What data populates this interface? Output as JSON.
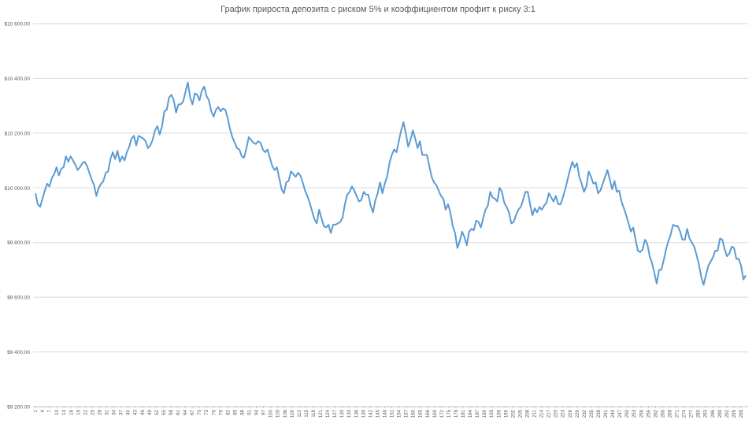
{
  "chart_data": {
    "type": "line",
    "title": "График прироста депозита с риском 5% и коэффициентом профит к риску 3:1",
    "xlabel": "",
    "ylabel": "",
    "x_range": [
      1,
      300
    ],
    "x_tick_step": 3,
    "ylim": [
      9200,
      10600
    ],
    "y_ticks": [
      9200,
      9400,
      9600,
      9800,
      10000,
      10200,
      10400,
      10600
    ],
    "y_tick_labels": [
      "$9 200.00",
      "$9 400.00",
      "$9 600.00",
      "$9 800.00",
      "$10 000.00",
      "$10 200.00",
      "$10 400.00",
      "$10 600.00"
    ],
    "grid": true,
    "legend": "none",
    "line_color": "#5b9bd5",
    "grid_color": "#d9d9d9",
    "series": [
      {
        "values": [
          9980,
          9940,
          9930,
          9960,
          9990,
          10015,
          10005,
          10035,
          10050,
          10075,
          10045,
          10070,
          10075,
          10115,
          10095,
          10115,
          10100,
          10085,
          10065,
          10075,
          10090,
          10095,
          10080,
          10055,
          10030,
          10010,
          9970,
          10000,
          10015,
          10025,
          10055,
          10060,
          10105,
          10130,
          10105,
          10135,
          10095,
          10115,
          10100,
          10130,
          10150,
          10180,
          10190,
          10155,
          10190,
          10185,
          10180,
          10170,
          10145,
          10155,
          10175,
          10210,
          10225,
          10195,
          10225,
          10280,
          10285,
          10330,
          10340,
          10320,
          10275,
          10305,
          10305,
          10315,
          10350,
          10385,
          10330,
          10305,
          10345,
          10340,
          10320,
          10355,
          10370,
          10335,
          10320,
          10280,
          10260,
          10285,
          10295,
          10280,
          10290,
          10285,
          10255,
          10215,
          10185,
          10165,
          10145,
          10140,
          10115,
          10110,
          10145,
          10185,
          10175,
          10165,
          10160,
          10170,
          10165,
          10140,
          10130,
          10140,
          10110,
          10080,
          10065,
          10075,
          10035,
          9995,
          9980,
          10020,
          10025,
          10060,
          10050,
          10040,
          10055,
          10045,
          10020,
          9990,
          9970,
          9945,
          9915,
          9885,
          9870,
          9920,
          9890,
          9860,
          9855,
          9865,
          9835,
          9865,
          9865,
          9870,
          9875,
          9890,
          9940,
          9975,
          9985,
          10005,
          9990,
          9970,
          9950,
          9955,
          9985,
          9975,
          9975,
          9935,
          9910,
          9955,
          9980,
          10020,
          9980,
          10015,
          10040,
          10090,
          10120,
          10140,
          10130,
          10170,
          10210,
          10240,
          10200,
          10150,
          10175,
          10210,
          10180,
          10145,
          10170,
          10120,
          10120,
          10120,
          10080,
          10040,
          10020,
          10010,
          9990,
          9970,
          9960,
          9920,
          9940,
          9910,
          9860,
          9835,
          9780,
          9805,
          9840,
          9820,
          9790,
          9840,
          9850,
          9845,
          9880,
          9875,
          9855,
          9890,
          9920,
          9935,
          9985,
          9965,
          9960,
          9950,
          10000,
          9985,
          9945,
          9930,
          9910,
          9870,
          9875,
          9900,
          9920,
          9930,
          9955,
          9985,
          9985,
          9940,
          9900,
          9925,
          9910,
          9930,
          9920,
          9935,
          9945,
          9980,
          9965,
          9950,
          9970,
          9940,
          9940,
          9965,
          9995,
          10030,
          10065,
          10095,
          10075,
          10090,
          10040,
          10015,
          9985,
          10005,
          10060,
          10040,
          10015,
          10020,
          9980,
          9990,
          10015,
          10040,
          10065,
          10030,
          9995,
          10025,
          9985,
          9990,
          9950,
          9925,
          9900,
          9870,
          9840,
          9855,
          9810,
          9770,
          9765,
          9775,
          9810,
          9795,
          9750,
          9725,
          9690,
          9650,
          9700,
          9700,
          9735,
          9775,
          9805,
          9830,
          9865,
          9860,
          9860,
          9840,
          9810,
          9810,
          9850,
          9815,
          9800,
          9785,
          9755,
          9720,
          9675,
          9645,
          9680,
          9715,
          9730,
          9745,
          9770,
          9770,
          9815,
          9810,
          9775,
          9750,
          9760,
          9785,
          9780,
          9740,
          9740,
          9715,
          9665,
          9680
        ]
      }
    ]
  }
}
